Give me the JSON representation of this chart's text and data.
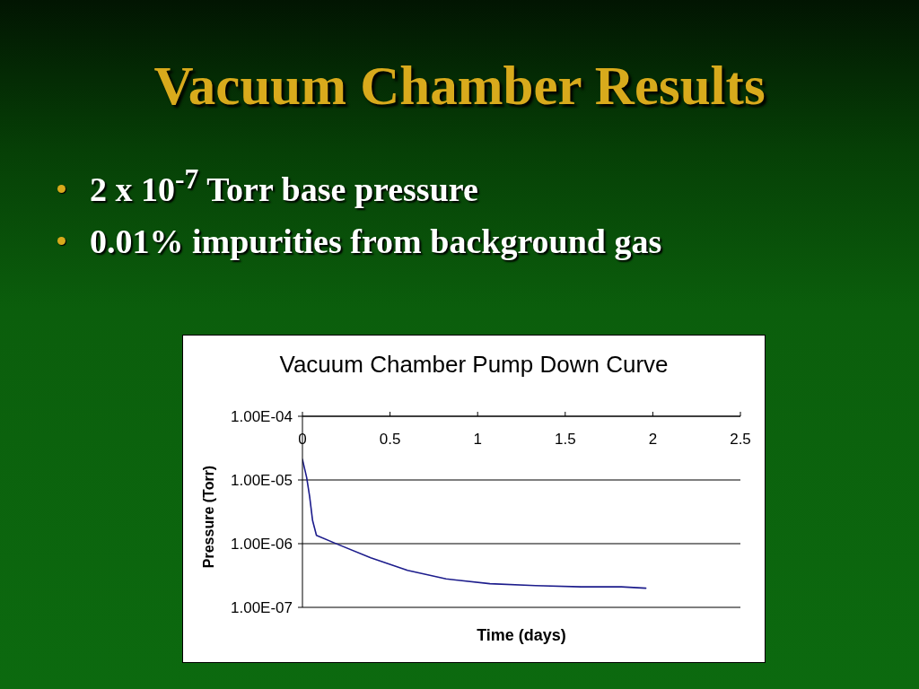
{
  "chart_data": {
    "type": "line",
    "title": "Vacuum Chamber Results",
    "subtitle": "Vacuum Chamber Pump Down Curve",
    "annotations": [
      "2 x 10$^{-7}$ Torr base pressure",
      "0.01% impurities from background gas"
    ],
    "xlabel": "Time (days)",
    "ylabel": "Pressure (Torr)",
    "x": [
      0,
      0.024,
      0.041,
      0.058,
      0.08,
      0.2,
      0.39,
      0.6,
      0.82,
      1.07,
      1.33,
      1.59,
      1.82,
      1.96
    ],
    "series": [
      {
        "color": "#1c1c8c",
        "values": [
          2.1e-05,
          1.1e-05,
          5.5e-06,
          2.3e-06,
          1.35e-06,
          9.8e-07,
          6e-07,
          3.8e-07,
          2.8e-07,
          2.35e-07,
          2.2e-07,
          2.1e-07,
          2.1e-07,
          2e-07
        ]
      }
    ],
    "xlim": [
      0,
      2.5
    ],
    "xticks": [
      0,
      0.5,
      1,
      1.5,
      2,
      2.5
    ],
    "ylim": [
      1e-07,
      0.0001
    ],
    "yticks": [
      {
        "value": 1e-07,
        "label": "1.00E-07"
      },
      {
        "value": 1e-06,
        "label": "1.00E-06"
      },
      {
        "value": 1e-05,
        "label": "1.00E-05"
      },
      {
        "value": 0.0001,
        "label": "1.00E-04"
      }
    ],
    "log": "y",
    "grid": "y",
    "marker": "none",
    "line_style": "solid"
  }
}
